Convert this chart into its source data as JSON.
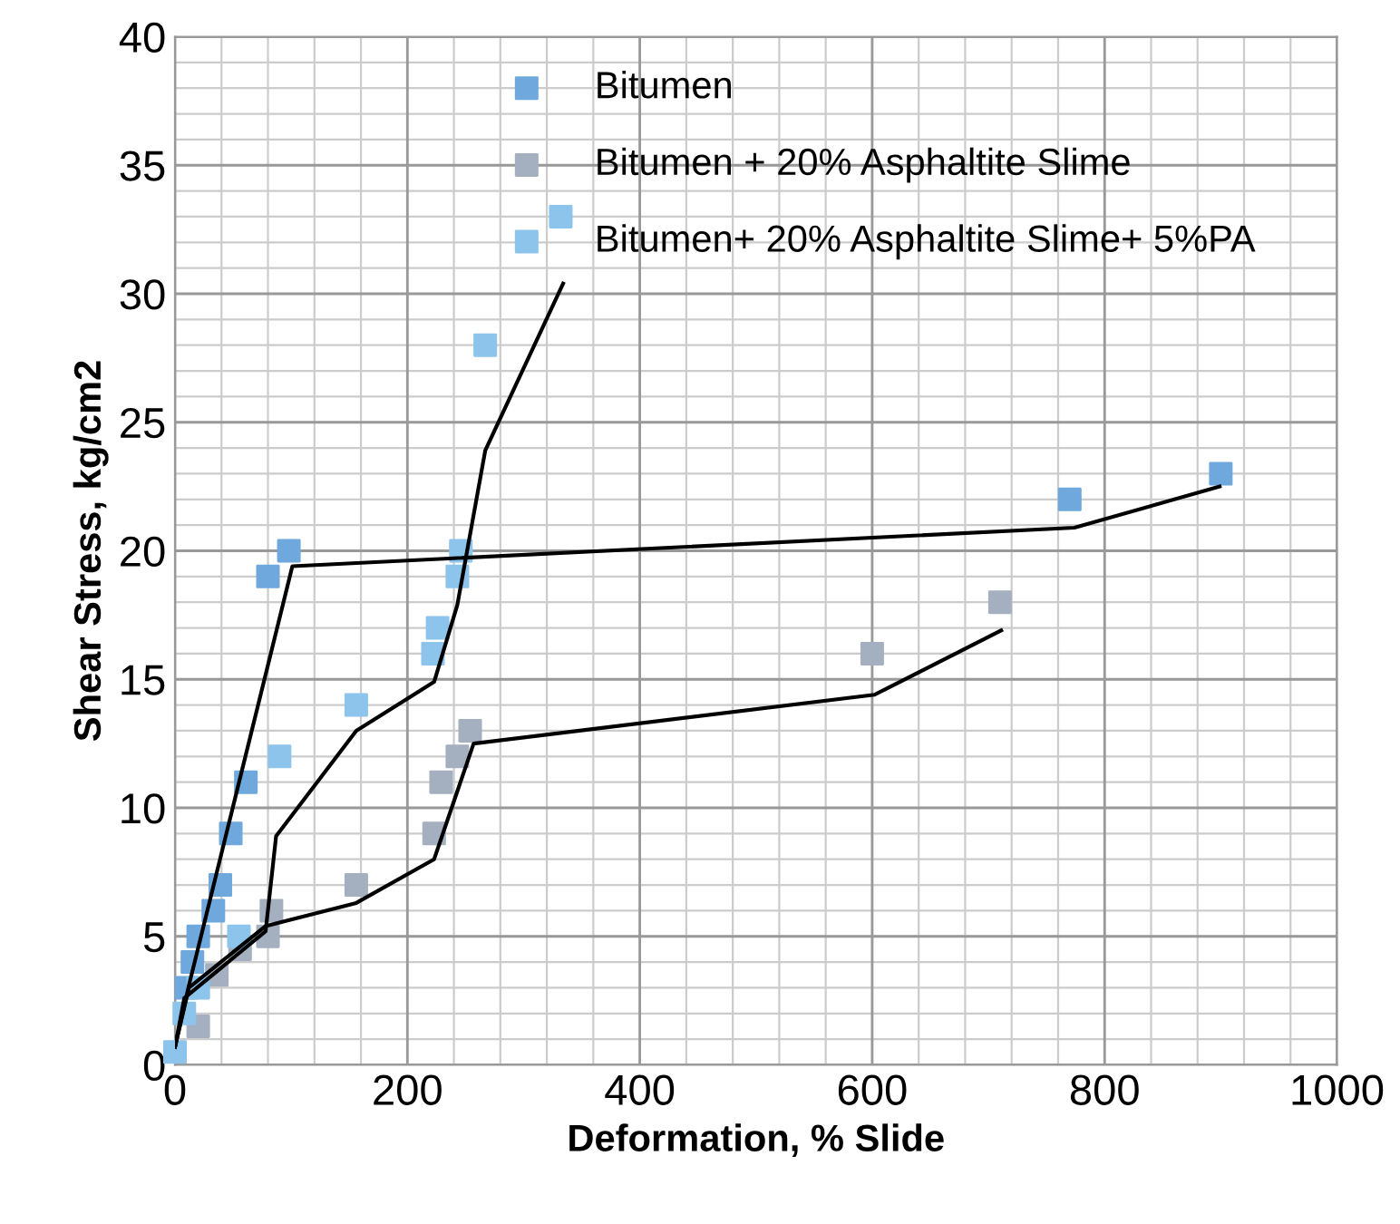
{
  "chart_data": {
    "type": "scatter",
    "xlabel": "Deformation, % Slide",
    "ylabel": "Shear Stress, kg/cm2",
    "xlim": [
      0,
      1000
    ],
    "ylim": [
      0,
      40
    ],
    "xticks": [
      0,
      200,
      400,
      600,
      800,
      1000
    ],
    "yticks": [
      0,
      5,
      10,
      15,
      20,
      25,
      30,
      35,
      40
    ],
    "grid": true,
    "legend": "top",
    "marker": "square",
    "series": [
      {
        "name": "Bitumen",
        "color": "#6fa8dc",
        "x": [
          10,
          15,
          20,
          33,
          39,
          48,
          61,
          80,
          98,
          770,
          900
        ],
        "values": [
          3,
          4,
          5,
          6,
          7,
          9,
          11,
          19,
          20,
          22,
          23
        ]
      },
      {
        "name": "Bitumen + 20% Asphaltite Slime",
        "color": "#a4b0c0",
        "x": [
          20,
          36,
          56,
          80,
          83,
          156,
          223,
          229,
          243,
          254,
          600,
          710
        ],
        "values": [
          1.5,
          3.5,
          4.5,
          5,
          6,
          7,
          9,
          11,
          12,
          13,
          16,
          18
        ]
      },
      {
        "name": "Bitumen+ 20% Asphaltite Slime+ 5%PA",
        "color": "#8cc4ec",
        "x": [
          0,
          8,
          20,
          55,
          90,
          156,
          222,
          226,
          243,
          246,
          267,
          332
        ],
        "values": [
          0.5,
          2,
          3,
          5,
          12,
          14,
          16,
          17,
          19,
          20,
          28,
          33
        ]
      },
      {
        "type": "line",
        "color": "#000000",
        "marker": "none",
        "x": [
          0,
          12,
          101,
          774,
          899
        ],
        "values": [
          0.7,
          3.1,
          19.4,
          20.9,
          22.5
        ]
      },
      {
        "type": "line",
        "color": "#000000",
        "marker": "none",
        "x": [
          0,
          8,
          78,
          87,
          156,
          223,
          243,
          267,
          334
        ],
        "values": [
          0.7,
          2.6,
          5.2,
          8.9,
          13,
          14.9,
          17.9,
          23.9,
          30.4
        ]
      },
      {
        "type": "line",
        "color": "#000000",
        "marker": "none",
        "x": [
          0,
          12,
          78,
          156,
          223,
          257,
          602,
          711
        ],
        "values": [
          0.7,
          3,
          5.4,
          6.3,
          8,
          12.5,
          14.4,
          16.9
        ]
      }
    ]
  }
}
